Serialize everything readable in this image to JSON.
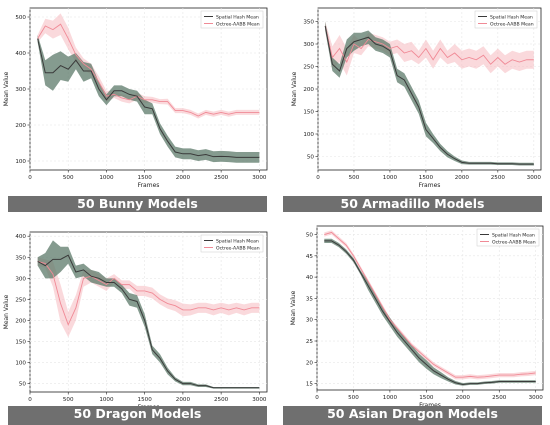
{
  "colors": {
    "spatial_line": "#3a3a3a",
    "spatial_band": "#5c7a69",
    "octree_line": "#f08a96",
    "octree_band": "#f6b9c0",
    "banner_bg": "#6f6f6f"
  },
  "banners": [
    "50 Bunny Models",
    "50 Armadillo Models",
    "50 Dragon Models",
    "50 Asian Dragon Models"
  ],
  "chart_data": [
    {
      "type": "line",
      "xlabel": "Frames",
      "ylabel": "Mean Value",
      "xlim": [
        0,
        3100
      ],
      "ylim": [
        75,
        525
      ],
      "xticks": [
        0,
        500,
        1000,
        1500,
        2000,
        2500,
        3000
      ],
      "yticks": [
        100,
        200,
        300,
        400,
        500
      ],
      "grid": true,
      "legend": "top-right",
      "x": [
        100,
        200,
        300,
        400,
        500,
        600,
        700,
        800,
        900,
        1000,
        1100,
        1200,
        1300,
        1400,
        1500,
        1600,
        1700,
        1800,
        1900,
        2000,
        2100,
        2200,
        2300,
        2400,
        2500,
        2600,
        2700,
        2800,
        2900,
        3000
      ],
      "series": [
        {
          "name": "Spatial Hash Mean",
          "values": [
            440,
            345,
            345,
            365,
            355,
            380,
            350,
            350,
            300,
            270,
            295,
            295,
            285,
            280,
            250,
            245,
            190,
            155,
            125,
            120,
            120,
            115,
            118,
            112,
            113,
            112,
            110,
            110,
            110,
            110
          ],
          "lower": [
            430,
            310,
            295,
            325,
            320,
            355,
            320,
            330,
            280,
            255,
            280,
            280,
            270,
            265,
            230,
            230,
            175,
            140,
            110,
            105,
            105,
            100,
            103,
            97,
            98,
            97,
            95,
            95,
            95,
            95
          ],
          "upper": [
            450,
            380,
            395,
            405,
            390,
            400,
            375,
            370,
            320,
            285,
            310,
            310,
            300,
            295,
            270,
            260,
            205,
            170,
            140,
            135,
            135,
            130,
            133,
            127,
            128,
            127,
            125,
            125,
            125,
            125
          ]
        },
        {
          "name": "Octree-AABB Mean",
          "values": [
            440,
            475,
            465,
            480,
            440,
            395,
            370,
            355,
            320,
            280,
            285,
            275,
            270,
            280,
            270,
            270,
            265,
            265,
            240,
            240,
            235,
            225,
            235,
            230,
            235,
            230,
            235,
            235,
            235,
            235
          ],
          "lower": [
            430,
            455,
            440,
            450,
            410,
            375,
            355,
            340,
            305,
            265,
            275,
            265,
            260,
            270,
            260,
            262,
            258,
            257,
            233,
            233,
            228,
            218,
            228,
            223,
            228,
            223,
            228,
            228,
            228,
            228
          ],
          "upper": [
            450,
            495,
            490,
            510,
            470,
            415,
            385,
            370,
            335,
            295,
            295,
            285,
            280,
            290,
            280,
            278,
            272,
            273,
            247,
            247,
            242,
            232,
            242,
            237,
            242,
            237,
            242,
            242,
            242,
            242
          ]
        }
      ]
    },
    {
      "type": "line",
      "xlabel": "Frames",
      "ylabel": "Mean Value",
      "xlim": [
        0,
        3100
      ],
      "ylim": [
        20,
        380
      ],
      "xticks": [
        0,
        500,
        1000,
        1500,
        2000,
        2500,
        3000
      ],
      "yticks": [
        50,
        100,
        150,
        200,
        250,
        300,
        350
      ],
      "grid": true,
      "legend": "top-right",
      "x": [
        100,
        200,
        300,
        400,
        500,
        600,
        700,
        800,
        900,
        1000,
        1100,
        1200,
        1300,
        1400,
        1500,
        1600,
        1700,
        1800,
        1900,
        2000,
        2100,
        2200,
        2300,
        2400,
        2500,
        2600,
        2700,
        2800,
        2900,
        3000
      ],
      "series": [
        {
          "name": "Spatial Hash Mean",
          "values": [
            340,
            255,
            240,
            290,
            305,
            310,
            315,
            300,
            295,
            285,
            230,
            220,
            190,
            160,
            110,
            90,
            70,
            55,
            45,
            37,
            35,
            35,
            35,
            35,
            34,
            34,
            34,
            33,
            33,
            33
          ],
          "lower": [
            330,
            240,
            225,
            270,
            285,
            295,
            300,
            285,
            280,
            270,
            215,
            205,
            175,
            145,
            95,
            80,
            62,
            48,
            40,
            33,
            32,
            32,
            32,
            32,
            31,
            31,
            31,
            30,
            30,
            30
          ],
          "upper": [
            350,
            270,
            255,
            310,
            325,
            325,
            330,
            315,
            310,
            300,
            245,
            235,
            205,
            175,
            125,
            100,
            78,
            62,
            50,
            41,
            38,
            38,
            38,
            38,
            37,
            37,
            37,
            36,
            36,
            36
          ]
        },
        {
          "name": "Octree-AABB Mean",
          "values": [
            340,
            270,
            290,
            260,
            300,
            290,
            310,
            305,
            300,
            290,
            295,
            280,
            285,
            270,
            290,
            265,
            290,
            270,
            280,
            265,
            270,
            265,
            275,
            255,
            270,
            255,
            265,
            260,
            265,
            265
          ],
          "lower": [
            330,
            245,
            260,
            230,
            280,
            275,
            295,
            290,
            285,
            275,
            280,
            260,
            265,
            255,
            270,
            245,
            270,
            255,
            260,
            245,
            250,
            245,
            255,
            235,
            250,
            235,
            245,
            240,
            245,
            245
          ],
          "upper": [
            350,
            295,
            320,
            290,
            320,
            305,
            325,
            320,
            315,
            305,
            310,
            300,
            305,
            285,
            310,
            285,
            310,
            285,
            300,
            285,
            290,
            285,
            295,
            275,
            290,
            275,
            285,
            280,
            285,
            285
          ]
        }
      ]
    },
    {
      "type": "line",
      "xlabel": "Frames",
      "ylabel": "Mean Value",
      "xlim": [
        0,
        3100
      ],
      "ylim": [
        30,
        410
      ],
      "xticks": [
        0,
        500,
        1000,
        1500,
        2000,
        2500,
        3000
      ],
      "yticks": [
        50,
        100,
        150,
        200,
        250,
        300,
        350,
        400
      ],
      "grid": true,
      "legend": "top-right",
      "x": [
        100,
        200,
        300,
        400,
        500,
        600,
        700,
        800,
        900,
        1000,
        1100,
        1200,
        1300,
        1400,
        1500,
        1600,
        1700,
        1800,
        1900,
        2000,
        2100,
        2200,
        2300,
        2400,
        2500,
        2600,
        2700,
        2800,
        2900,
        3000
      ],
      "series": [
        {
          "name": "Spatial Hash Mean",
          "values": [
            340,
            330,
            345,
            345,
            355,
            315,
            320,
            305,
            300,
            290,
            290,
            275,
            250,
            245,
            200,
            130,
            110,
            80,
            60,
            50,
            50,
            45,
            45,
            40,
            40,
            40,
            40,
            40,
            40,
            40
          ],
          "lower": [
            330,
            300,
            300,
            315,
            335,
            300,
            305,
            290,
            285,
            280,
            280,
            265,
            235,
            230,
            185,
            120,
            100,
            72,
            55,
            46,
            46,
            42,
            42,
            38,
            38,
            38,
            38,
            38,
            38,
            38
          ],
          "upper": [
            350,
            360,
            390,
            375,
            375,
            330,
            335,
            320,
            315,
            300,
            300,
            285,
            265,
            260,
            215,
            140,
            120,
            88,
            65,
            54,
            54,
            48,
            48,
            42,
            42,
            42,
            42,
            42,
            42,
            42
          ]
        },
        {
          "name": "Octree-AABB Mean",
          "values": [
            340,
            335,
            310,
            240,
            190,
            230,
            300,
            305,
            295,
            285,
            300,
            285,
            285,
            270,
            270,
            265,
            250,
            240,
            235,
            225,
            225,
            230,
            230,
            225,
            230,
            225,
            230,
            225,
            230,
            230
          ],
          "lower": [
            330,
            325,
            280,
            195,
            160,
            200,
            280,
            290,
            280,
            270,
            290,
            275,
            275,
            258,
            258,
            252,
            238,
            228,
            222,
            210,
            212,
            218,
            218,
            212,
            218,
            212,
            218,
            212,
            218,
            218
          ],
          "upper": [
            350,
            345,
            340,
            285,
            220,
            260,
            320,
            320,
            310,
            300,
            310,
            295,
            295,
            282,
            282,
            278,
            262,
            252,
            248,
            240,
            238,
            242,
            242,
            238,
            242,
            238,
            242,
            238,
            242,
            242
          ]
        }
      ]
    },
    {
      "type": "line",
      "xlabel": "Frames",
      "ylabel": "Mean Value",
      "xlim": [
        0,
        3100
      ],
      "ylim": [
        13.5,
        52
      ],
      "xticks": [
        0,
        500,
        1000,
        1500,
        2000,
        2500,
        3000
      ],
      "yticks": [
        15,
        20,
        25,
        30,
        35,
        40,
        45,
        50
      ],
      "grid": true,
      "legend": "top-right",
      "x": [
        100,
        200,
        300,
        400,
        500,
        600,
        700,
        800,
        900,
        1000,
        1100,
        1200,
        1300,
        1400,
        1500,
        1600,
        1700,
        1800,
        1900,
        2000,
        2100,
        2200,
        2300,
        2400,
        2500,
        2600,
        2700,
        2800,
        2900,
        3000
      ],
      "series": [
        {
          "name": "Spatial Hash Mean",
          "values": [
            48.5,
            48.5,
            47.5,
            46,
            44,
            41,
            38,
            35,
            32,
            29.5,
            27,
            25,
            23,
            21,
            19.5,
            18,
            17,
            16,
            15.2,
            14.8,
            15,
            15,
            15.2,
            15.3,
            15.5,
            15.5,
            15.5,
            15.5,
            15.5,
            15.5
          ],
          "lower": [
            48,
            48,
            47,
            45.5,
            43.5,
            40.5,
            37,
            34,
            31,
            28.5,
            26,
            24,
            22,
            20,
            18.5,
            17.2,
            16.3,
            15.5,
            14.8,
            14.5,
            14.7,
            14.7,
            14.9,
            15,
            15.2,
            15.2,
            15.2,
            15.2,
            15.2,
            15.2
          ],
          "upper": [
            49,
            49,
            48,
            46.5,
            44.5,
            41.5,
            39,
            36,
            33,
            30.5,
            28,
            26,
            24,
            22,
            20.5,
            18.8,
            17.7,
            16.5,
            15.6,
            15.1,
            15.3,
            15.3,
            15.5,
            15.6,
            15.8,
            15.8,
            15.8,
            15.8,
            15.8,
            15.8
          ]
        },
        {
          "name": "Octree-AABB Mean",
          "values": [
            50,
            50.5,
            49,
            47.5,
            45,
            42,
            39,
            36,
            33,
            30,
            28,
            26,
            24,
            22.5,
            21,
            19.5,
            18.5,
            17.5,
            16.5,
            16.5,
            16.7,
            16.5,
            16.6,
            16.8,
            17,
            17,
            17,
            17.2,
            17.3,
            17.5
          ],
          "lower": [
            49.5,
            50,
            48.5,
            47,
            44.5,
            41.5,
            38.5,
            35.5,
            32.5,
            29.5,
            27.5,
            25.5,
            23.5,
            22,
            20.5,
            19,
            18,
            17,
            16,
            16,
            16.2,
            16,
            16.1,
            16.3,
            16.5,
            16.5,
            16.5,
            16.7,
            16.8,
            17
          ],
          "upper": [
            50.5,
            51,
            49.5,
            48,
            45.5,
            42.5,
            39.5,
            36.5,
            33.5,
            30.5,
            28.5,
            26.5,
            24.5,
            23,
            21.5,
            20,
            19,
            18,
            17,
            17,
            17.2,
            17,
            17.1,
            17.3,
            17.5,
            17.5,
            17.5,
            17.7,
            17.8,
            18
          ]
        }
      ]
    }
  ]
}
